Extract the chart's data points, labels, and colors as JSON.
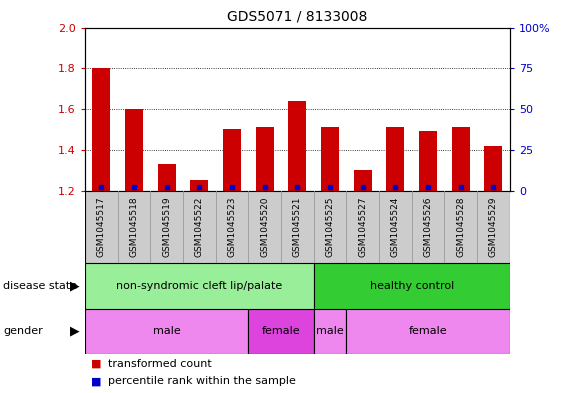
{
  "title": "GDS5071 / 8133008",
  "samples": [
    "GSM1045517",
    "GSM1045518",
    "GSM1045519",
    "GSM1045522",
    "GSM1045523",
    "GSM1045520",
    "GSM1045521",
    "GSM1045525",
    "GSM1045527",
    "GSM1045524",
    "GSM1045526",
    "GSM1045528",
    "GSM1045529"
  ],
  "transformed_counts": [
    1.8,
    1.6,
    1.33,
    1.25,
    1.5,
    1.51,
    1.64,
    1.51,
    1.3,
    1.51,
    1.49,
    1.51,
    1.42
  ],
  "percentile_ranks": [
    2,
    2,
    2,
    2,
    2,
    2,
    2,
    2,
    2,
    2,
    2,
    2,
    2
  ],
  "ylim_left": [
    1.2,
    2.0
  ],
  "ylim_right": [
    0,
    100
  ],
  "yticks_left": [
    1.2,
    1.4,
    1.6,
    1.8,
    2.0
  ],
  "yticks_right": [
    0,
    25,
    50,
    75,
    100
  ],
  "ytick_labels_right": [
    "0",
    "25",
    "50",
    "75",
    "100%"
  ],
  "bar_color_red": "#cc0000",
  "bar_color_blue": "#0000cc",
  "disease_state_groups": [
    {
      "label": "non-syndromic cleft lip/palate",
      "start": 0,
      "end": 6,
      "color": "#99ee99"
    },
    {
      "label": "healthy control",
      "start": 7,
      "end": 12,
      "color": "#33cc33"
    }
  ],
  "gender_groups": [
    {
      "label": "male",
      "start": 0,
      "end": 4,
      "color": "#ee88ee"
    },
    {
      "label": "female",
      "start": 5,
      "end": 6,
      "color": "#dd44dd"
    },
    {
      "label": "male",
      "start": 7,
      "end": 7,
      "color": "#ee88ee"
    },
    {
      "label": "female",
      "start": 8,
      "end": 12,
      "color": "#ee88ee"
    }
  ],
  "background_color": "#ffffff",
  "tick_color_left": "#cc0000",
  "tick_color_right": "#0000cc",
  "xtick_bg_color": "#cccccc",
  "xtick_sep_color": "#999999"
}
